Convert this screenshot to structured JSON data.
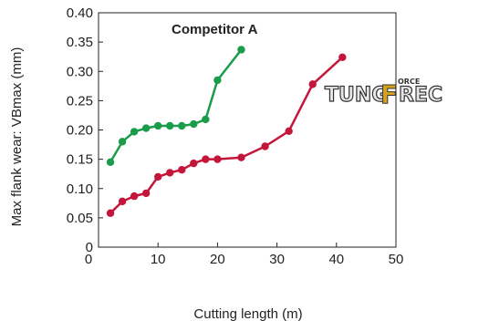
{
  "chart_data": {
    "type": "line",
    "xlabel": "Cutting length (m)",
    "ylabel": "Max flank wear: VBmax (mm)",
    "xlim": [
      0,
      50
    ],
    "ylim": [
      0,
      0.4
    ],
    "x_ticks": [
      "10",
      "20",
      "30",
      "40",
      "50"
    ],
    "x_origin_label": "0",
    "y_ticks": [
      "0",
      "0.05",
      "0.10",
      "0.15",
      "0.20",
      "0.25",
      "0.30",
      "0.35",
      "0.40"
    ],
    "grid": false,
    "annotation": "Competitor A",
    "logo_text": "TUNGFORCEREC",
    "series": [
      {
        "name": "Competitor A",
        "color": "#1a9c4a",
        "x": [
          2,
          4,
          6,
          8,
          10,
          12,
          14,
          16,
          18,
          20,
          24
        ],
        "y": [
          0.145,
          0.18,
          0.197,
          0.203,
          0.207,
          0.207,
          0.207,
          0.21,
          0.218,
          0.285,
          0.337
        ]
      },
      {
        "color": "#c4163a",
        "x": [
          2,
          4,
          6,
          8,
          10,
          12,
          14,
          16,
          18,
          20,
          24,
          28,
          32,
          36,
          41
        ],
        "y": [
          0.058,
          0.078,
          0.087,
          0.092,
          0.12,
          0.127,
          0.132,
          0.143,
          0.15,
          0.15,
          0.153,
          0.172,
          0.198,
          0.278,
          0.324
        ]
      }
    ]
  }
}
